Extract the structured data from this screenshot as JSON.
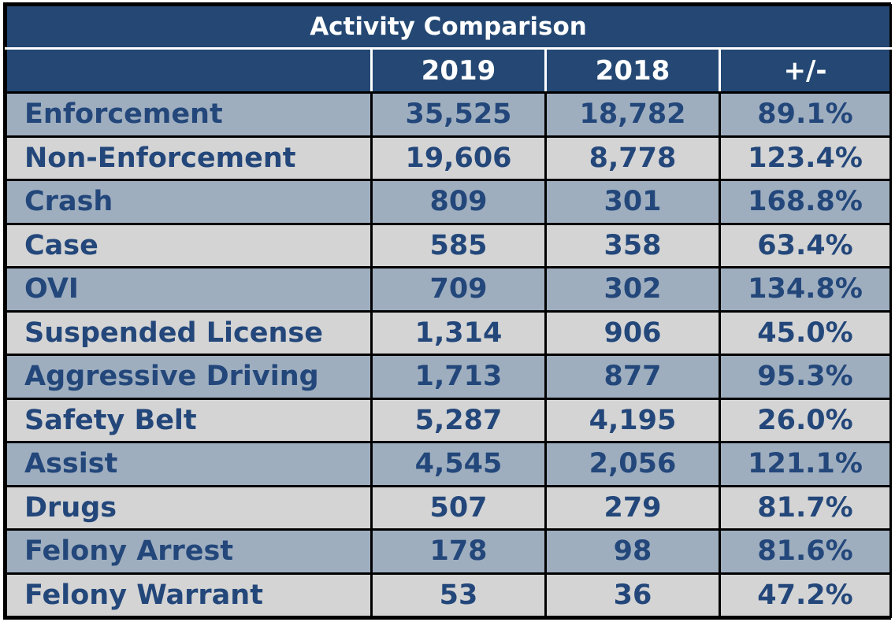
{
  "chart_data": {
    "type": "table",
    "title": "Activity Comparison",
    "columns": [
      "",
      "2019",
      "2018",
      "+/-"
    ],
    "rows": [
      {
        "label": "Enforcement",
        "y2019": "35,525",
        "y2018": "18,782",
        "change": "89.1%"
      },
      {
        "label": "Non-Enforcement",
        "y2019": "19,606",
        "y2018": "8,778",
        "change": "123.4%"
      },
      {
        "label": "Crash",
        "y2019": "809",
        "y2018": "301",
        "change": "168.8%"
      },
      {
        "label": "Case",
        "y2019": "585",
        "y2018": "358",
        "change": "63.4%"
      },
      {
        "label": "OVI",
        "y2019": "709",
        "y2018": "302",
        "change": "134.8%"
      },
      {
        "label": "Suspended License",
        "y2019": "1,314",
        "y2018": "906",
        "change": "45.0%"
      },
      {
        "label": "Aggressive Driving",
        "y2019": "1,713",
        "y2018": "877",
        "change": "95.3%"
      },
      {
        "label": "Safety Belt",
        "y2019": "5,287",
        "y2018": "4,195",
        "change": "26.0%"
      },
      {
        "label": "Assist",
        "y2019": "4,545",
        "y2018": "2,056",
        "change": "121.1%"
      },
      {
        "label": "Drugs",
        "y2019": "507",
        "y2018": "279",
        "change": "81.7%"
      },
      {
        "label": "Felony Arrest",
        "y2019": "178",
        "y2018": "98",
        "change": "81.6%"
      },
      {
        "label": "Felony Warrant",
        "y2019": "53",
        "y2018": "36",
        "change": "47.2%"
      }
    ]
  },
  "colors": {
    "header_bg": "#244873",
    "header_text": "#ffffff",
    "row_shade": "#9eaebf",
    "row_light": "#d4d4d4",
    "cell_text": "#23477a"
  }
}
